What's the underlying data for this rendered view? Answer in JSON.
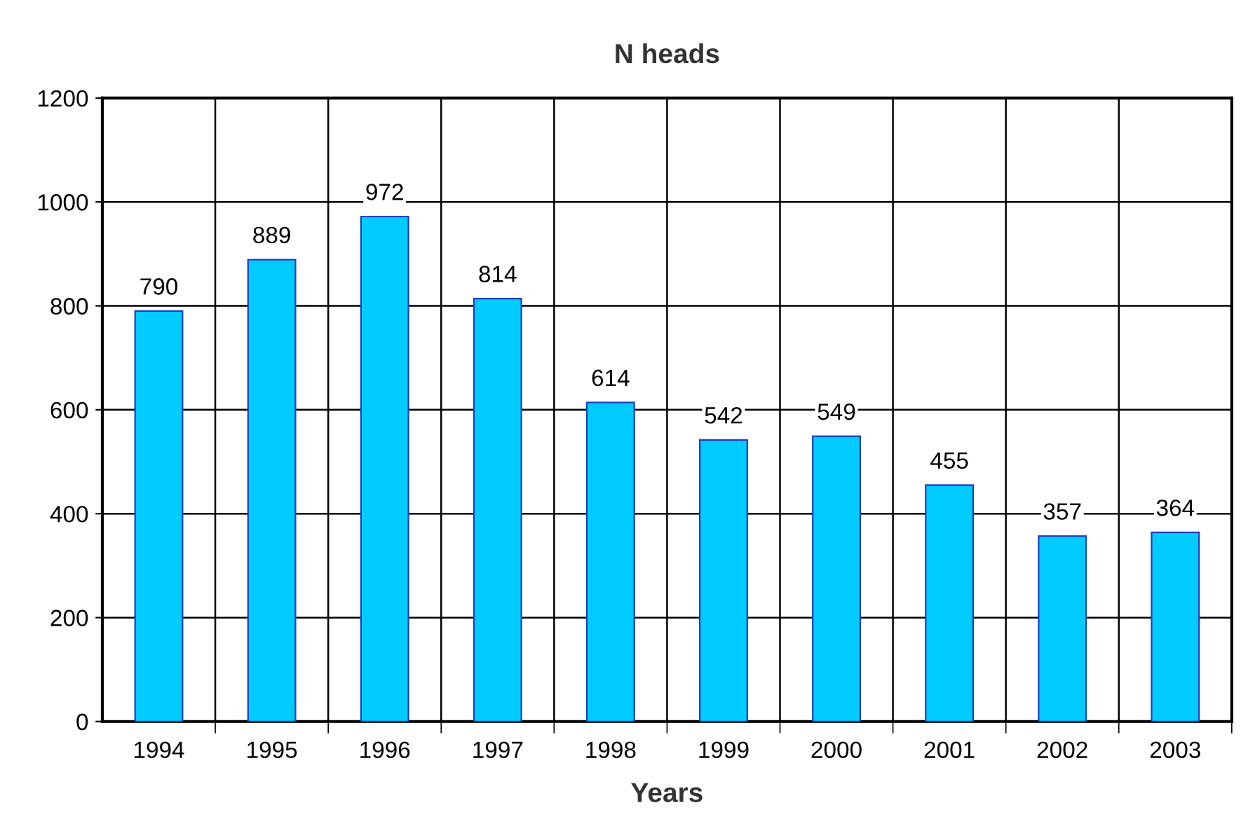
{
  "chart_data": {
    "type": "bar",
    "title": "N heads",
    "xlabel": "Years",
    "categories": [
      "1994",
      "1995",
      "1996",
      "1997",
      "1998",
      "1999",
      "2000",
      "2001",
      "2002",
      "2003"
    ],
    "values": [
      790,
      889,
      972,
      814,
      614,
      542,
      549,
      455,
      357,
      364
    ],
    "color": "#00ccff",
    "ylim": [
      0,
      1200
    ],
    "yticks": [
      0,
      200,
      400,
      600,
      800,
      1000,
      1200
    ],
    "grid": true,
    "data_labels": true
  }
}
